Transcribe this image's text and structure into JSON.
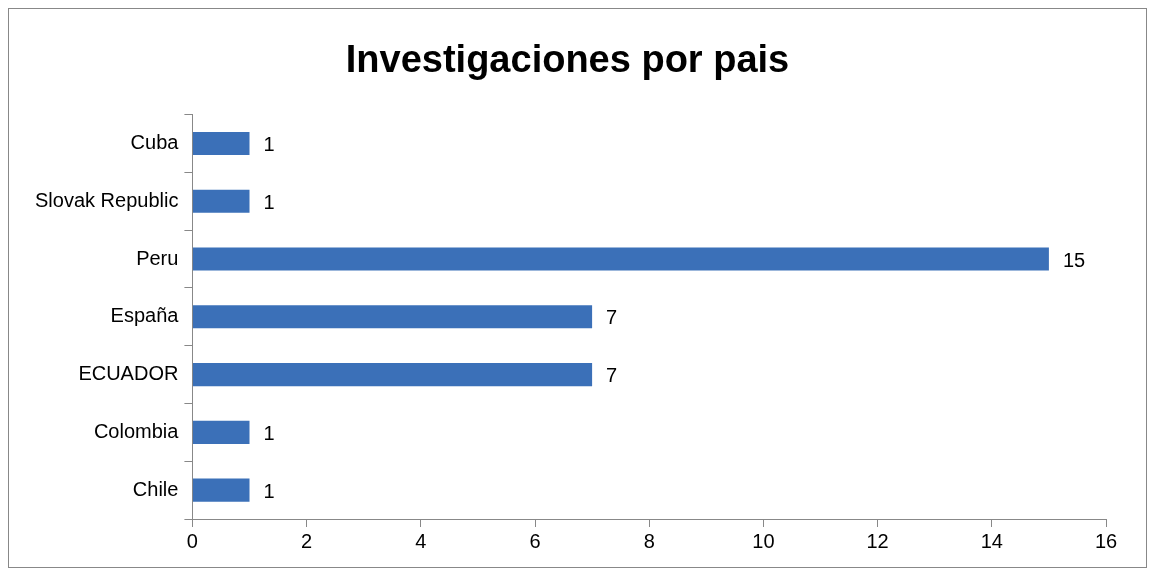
{
  "chart_data": {
    "type": "bar",
    "title": "Investigaciones por pais",
    "orientation": "horizontal",
    "categories": [
      "Cuba",
      "Slovak Republic",
      "Peru",
      "España",
      "ECUADOR",
      "Colombia",
      "Chile"
    ],
    "values": [
      1,
      1,
      15,
      7,
      7,
      1,
      1
    ],
    "color": "#3b70b8",
    "xlim": [
      0,
      16
    ],
    "xticks": [
      0,
      2,
      4,
      6,
      8,
      10,
      12,
      14,
      16
    ],
    "data_labels": true
  }
}
